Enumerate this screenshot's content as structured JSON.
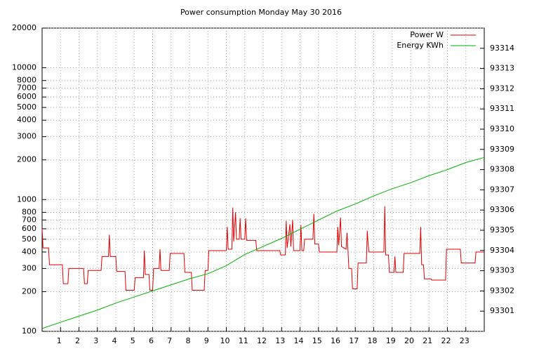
{
  "chart_data": {
    "type": "line",
    "title": "Power consumption Monday May 30 2016",
    "xlim": [
      0,
      24
    ],
    "xticks": [
      1,
      2,
      3,
      4,
      5,
      6,
      7,
      8,
      9,
      10,
      11,
      12,
      13,
      14,
      15,
      16,
      17,
      18,
      19,
      20,
      21,
      22,
      23
    ],
    "ylim": [
      100,
      20000
    ],
    "yticks": [
      100,
      200,
      300,
      400,
      500,
      600,
      700,
      800,
      1000,
      2000,
      3000,
      4000,
      5000,
      6000,
      7000,
      8000,
      10000,
      20000
    ],
    "y_scale": "log",
    "y2lim": [
      93300,
      93315
    ],
    "y2ticks": [
      93301,
      93302,
      93303,
      93304,
      93305,
      93306,
      93307,
      93308,
      93309,
      93310,
      93311,
      93312,
      93313,
      93314
    ],
    "grid": true,
    "legend": "top right",
    "series": [
      {
        "name": "Power W",
        "color": "#e00000",
        "x": [
          0,
          0.05,
          0.35,
          0.4,
          1.1,
          1.15,
          1.4,
          1.45,
          2.25,
          2.3,
          2.45,
          2.5,
          3.2,
          3.25,
          3.6,
          3.65,
          3.7,
          4.0,
          4.05,
          4.5,
          4.55,
          5.0,
          5.05,
          5.5,
          5.55,
          5.6,
          5.8,
          5.85,
          6.0,
          6.05,
          6.35,
          6.4,
          6.45,
          6.9,
          6.95,
          7.7,
          7.75,
          8.1,
          8.15,
          8.8,
          8.85,
          9.0,
          9.05,
          10.0,
          10.05,
          10.1,
          10.3,
          10.35,
          10.4,
          10.5,
          10.55,
          10.7,
          10.75,
          10.8,
          11.0,
          11.05,
          11.1,
          11.6,
          11.65,
          12.9,
          12.95,
          13.2,
          13.25,
          13.3,
          13.45,
          13.5,
          13.6,
          13.65,
          14.0,
          14.05,
          14.1,
          14.2,
          14.25,
          14.7,
          14.75,
          14.8,
          15.0,
          15.05,
          16.0,
          16.05,
          16.1,
          16.2,
          16.25,
          16.5,
          16.55,
          16.6,
          16.65,
          16.8,
          16.85,
          17.1,
          17.15,
          17.6,
          17.65,
          17.7,
          17.75,
          18.55,
          18.6,
          18.65,
          18.8,
          18.85,
          19.1,
          19.15,
          19.2,
          19.6,
          19.65,
          20.5,
          20.55,
          20.6,
          20.7,
          20.75,
          21.1,
          21.15,
          21.9,
          21.95,
          22.7,
          22.75,
          23.5,
          23.55,
          24
        ],
        "values": [
          600,
          430,
          430,
          320,
          320,
          230,
          230,
          300,
          300,
          230,
          230,
          290,
          290,
          370,
          370,
          540,
          370,
          370,
          285,
          285,
          205,
          205,
          255,
          255,
          410,
          270,
          270,
          205,
          205,
          300,
          300,
          420,
          290,
          290,
          390,
          390,
          280,
          280,
          205,
          205,
          290,
          290,
          410,
          410,
          620,
          420,
          420,
          870,
          480,
          800,
          500,
          500,
          720,
          500,
          500,
          720,
          490,
          490,
          410,
          410,
          380,
          380,
          690,
          430,
          650,
          440,
          700,
          410,
          410,
          640,
          410,
          410,
          500,
          500,
          780,
          460,
          460,
          400,
          400,
          620,
          450,
          730,
          440,
          420,
          560,
          420,
          300,
          300,
          210,
          210,
          330,
          330,
          580,
          450,
          400,
          400,
          890,
          380,
          380,
          280,
          280,
          370,
          280,
          280,
          390,
          390,
          620,
          320,
          320,
          250,
          250,
          245,
          245,
          420,
          420,
          330,
          330,
          400,
          400
        ]
      },
      {
        "name": "Energy KWh",
        "color": "#00b000",
        "axis": "y2",
        "x": [
          0,
          1,
          2,
          3,
          4,
          5,
          6,
          7,
          8,
          9,
          10,
          11,
          12,
          13,
          14,
          15,
          16,
          17,
          18,
          19,
          20,
          21,
          22,
          23,
          24
        ],
        "values": [
          93300.14,
          93300.45,
          93300.75,
          93301.05,
          93301.4,
          93301.7,
          93302.0,
          93302.3,
          93302.6,
          93302.85,
          93303.25,
          93303.8,
          93304.2,
          93304.6,
          93305.05,
          93305.5,
          93305.95,
          93306.3,
          93306.7,
          93307.05,
          93307.35,
          93307.7,
          93308.0,
          93308.35,
          93308.6
        ]
      }
    ]
  }
}
